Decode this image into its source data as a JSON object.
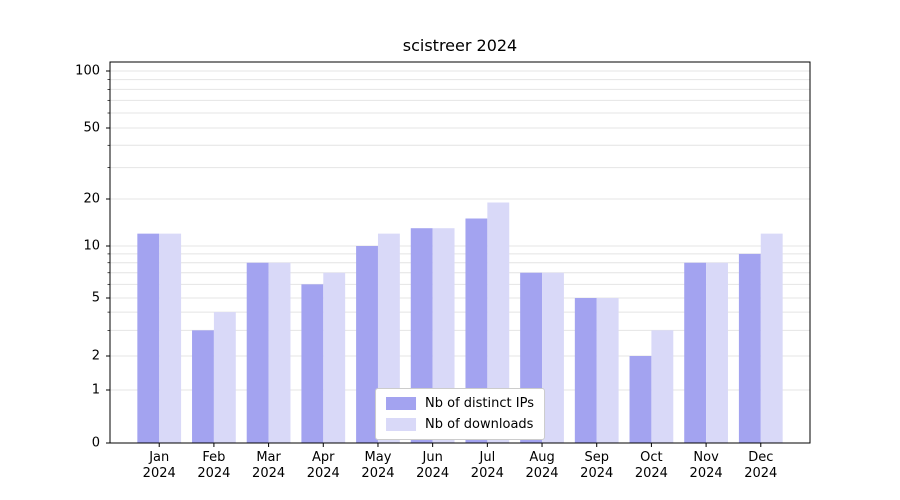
{
  "chart_data": {
    "type": "bar",
    "title": "scistreer 2024",
    "categories": [
      "Jan",
      "Feb",
      "Mar",
      "Apr",
      "May",
      "Jun",
      "Jul",
      "Aug",
      "Sep",
      "Oct",
      "Nov",
      "Dec"
    ],
    "year_label": "2024",
    "series": [
      {
        "name": "Nb of distinct IPs",
        "color": "#a3a3f0",
        "values": [
          12,
          3,
          8,
          6,
          10,
          13,
          15,
          7,
          5,
          2,
          8,
          9
        ]
      },
      {
        "name": "Nb of downloads",
        "color": "#d9d9f8",
        "values": [
          12,
          4,
          8,
          7,
          12,
          13,
          19,
          7,
          5,
          3,
          8,
          12
        ]
      }
    ],
    "yscale": "symlog",
    "yticks": [
      0,
      1,
      2,
      5,
      10,
      20,
      50,
      100
    ],
    "minor_yticks": [
      3,
      4,
      6,
      7,
      8,
      9,
      30,
      40,
      60,
      70,
      80,
      90
    ],
    "ylim": [
      0,
      110
    ],
    "xlabel": "",
    "ylabel": "",
    "grid": true,
    "legend_position": "lower center",
    "grid_color": "#e4e4e4"
  }
}
